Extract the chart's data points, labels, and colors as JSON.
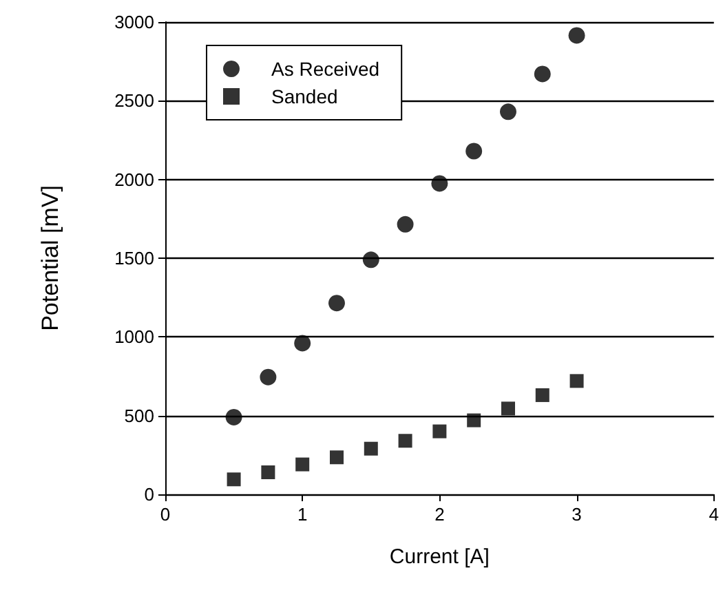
{
  "chart_data": {
    "type": "scatter",
    "xlabel": "Current [A]",
    "ylabel": "Potential [mV]",
    "xlim": [
      0,
      4
    ],
    "xticks": [
      0,
      1,
      2,
      3,
      4
    ],
    "ylim": [
      0,
      3000
    ],
    "yticks": [
      0,
      500,
      1000,
      1500,
      2000,
      2500,
      3000
    ],
    "grid": "y",
    "legend": "top left",
    "series": [
      {
        "name": "As Received",
        "color": "#000000",
        "marker": "circle",
        "x": [
          0.5,
          0.75,
          1,
          1.25,
          1.5,
          1.75,
          2,
          2.25,
          2.5,
          2.75,
          3
        ],
        "values": [
          490,
          745,
          960,
          1215,
          1490,
          1715,
          1975,
          2180,
          2430,
          2670,
          2915
        ]
      },
      {
        "name": "Sanded",
        "color": "#000000",
        "marker": "square",
        "x": [
          0.5,
          0.75,
          1,
          1.25,
          1.5,
          1.75,
          2,
          2.25,
          2.5,
          2.75,
          3
        ],
        "values": [
          95,
          140,
          190,
          235,
          290,
          340,
          400,
          470,
          545,
          630,
          720
        ]
      }
    ]
  }
}
